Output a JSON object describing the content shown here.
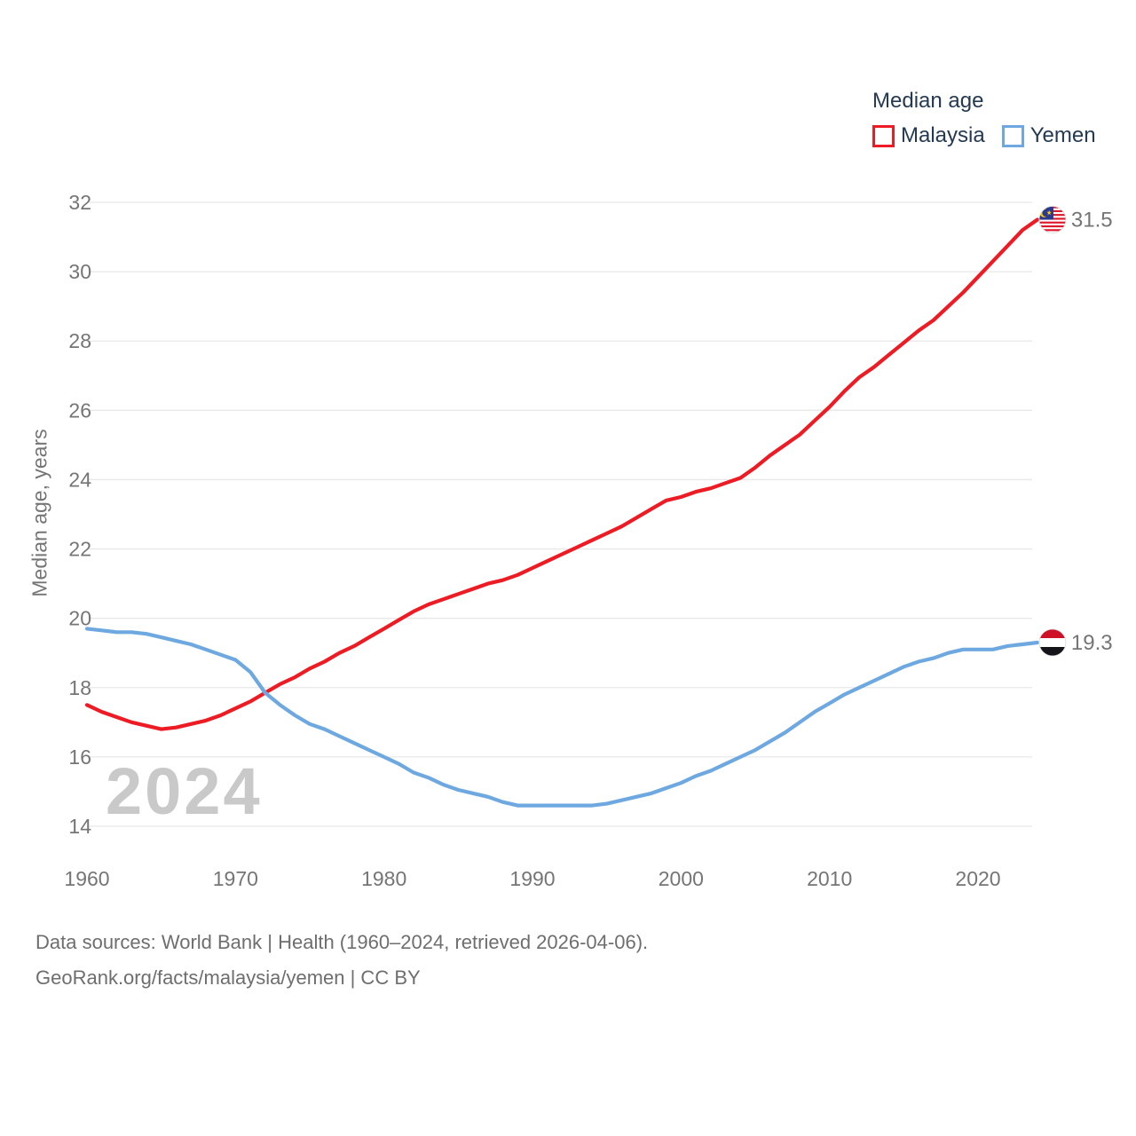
{
  "legend": {
    "title": "Median age",
    "items": [
      {
        "label": "Malaysia",
        "color": "#ed1c24"
      },
      {
        "label": "Yemen",
        "color": "#6ea8e0"
      }
    ]
  },
  "watermark": "2024",
  "footer": {
    "line1": "Data sources: World Bank | Health (1960–2024, retrieved 2026-04-06).",
    "line2": "GeoRank.org/facts/malaysia/yemen | CC BY"
  },
  "colors": {
    "grid": "#e8e8e8",
    "axis_text": "#757575",
    "legend_text": "#243a52",
    "watermark": "#c9c9c9",
    "footer_text": "#6e6e6e"
  },
  "chart_data": {
    "type": "line",
    "title": "Median age",
    "ylabel": "Median age, years",
    "x_start": 1960,
    "x_end": 2024,
    "x_step": 1,
    "xticks": [
      1960,
      1970,
      1980,
      1990,
      2000,
      2010,
      2020
    ],
    "yticks": [
      14,
      16,
      18,
      20,
      22,
      24,
      26,
      28,
      30,
      32
    ],
    "ylim": [
      14,
      32
    ],
    "grid": "horizontal",
    "legend_position": "top-right",
    "series": [
      {
        "name": "Malaysia",
        "color": "#ed1c24",
        "end_label": "31.5",
        "end_value": 31.5,
        "values": [
          17.5,
          17.3,
          17.15,
          17.0,
          16.9,
          16.8,
          16.85,
          16.95,
          17.05,
          17.2,
          17.4,
          17.6,
          17.85,
          18.1,
          18.3,
          18.55,
          18.75,
          19.0,
          19.2,
          19.45,
          19.7,
          19.95,
          20.2,
          20.4,
          20.55,
          20.7,
          20.85,
          21.0,
          21.1,
          21.25,
          21.45,
          21.65,
          21.85,
          22.05,
          22.25,
          22.45,
          22.65,
          22.9,
          23.15,
          23.4,
          23.5,
          23.65,
          23.75,
          23.9,
          24.05,
          24.35,
          24.7,
          25.0,
          25.3,
          25.7,
          26.1,
          26.55,
          26.95,
          27.25,
          27.6,
          27.95,
          28.3,
          28.6,
          29.0,
          29.4,
          29.85,
          30.3,
          30.75,
          31.2,
          31.5
        ]
      },
      {
        "name": "Yemen",
        "color": "#6ea8e0",
        "end_label": "19.3",
        "end_value": 19.3,
        "values": [
          19.7,
          19.65,
          19.6,
          19.6,
          19.55,
          19.45,
          19.35,
          19.25,
          19.1,
          18.95,
          18.8,
          18.45,
          17.85,
          17.5,
          17.2,
          16.95,
          16.8,
          16.6,
          16.4,
          16.2,
          16.0,
          15.8,
          15.55,
          15.4,
          15.2,
          15.05,
          14.95,
          14.85,
          14.7,
          14.6,
          14.6,
          14.6,
          14.6,
          14.6,
          14.6,
          14.65,
          14.75,
          14.85,
          14.95,
          15.1,
          15.25,
          15.45,
          15.6,
          15.8,
          16.0,
          16.2,
          16.45,
          16.7,
          17.0,
          17.3,
          17.55,
          17.8,
          18.0,
          18.2,
          18.4,
          18.6,
          18.75,
          18.85,
          19.0,
          19.1,
          19.1,
          19.1,
          19.2,
          19.25,
          19.3
        ]
      }
    ]
  }
}
